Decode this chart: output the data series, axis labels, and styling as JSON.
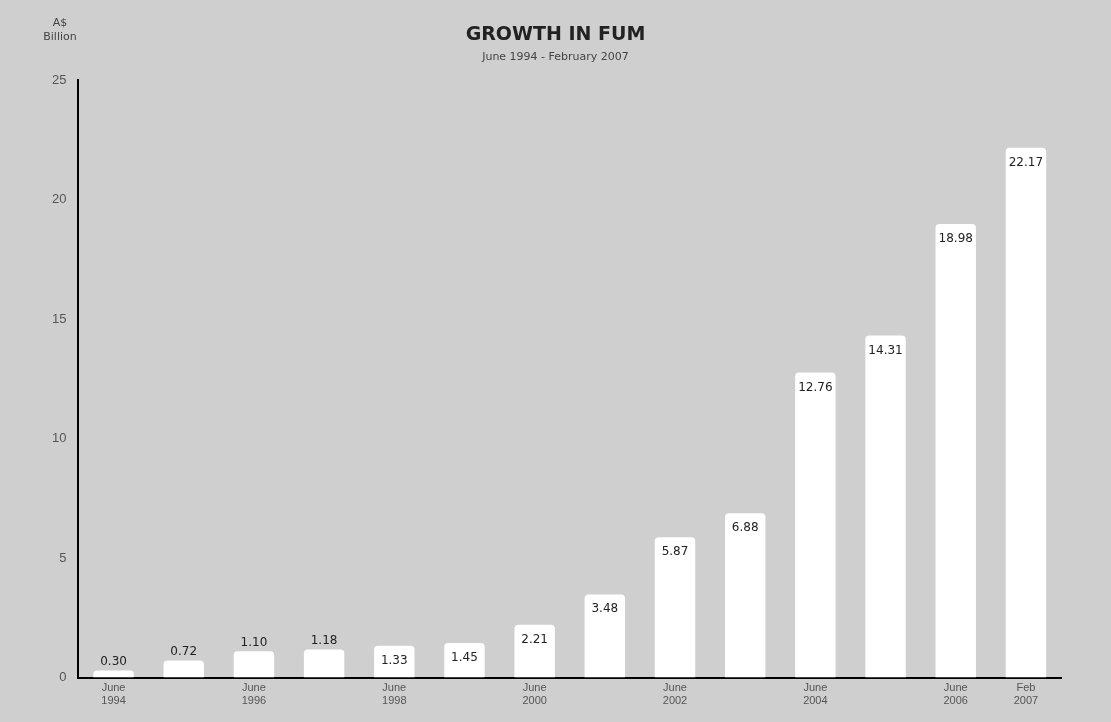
{
  "chart_data": {
    "type": "bar",
    "title": "GROWTH IN FUM",
    "subtitle": "June 1994 - February 2007",
    "ylabel": "A$ Billion",
    "categories": [
      "June 1994",
      null,
      "June 1996",
      null,
      "June 1998",
      null,
      "June 2000",
      null,
      "June 2002",
      null,
      "June 2004",
      null,
      "June 2006",
      "Feb 2007"
    ],
    "values": [
      0.3,
      0.72,
      1.1,
      1.18,
      1.33,
      1.45,
      2.21,
      3.48,
      5.87,
      6.88,
      12.76,
      14.31,
      18.98,
      22.17
    ],
    "value_labels": [
      "0.30",
      "0.72",
      "1.10",
      "1.18",
      "1.33",
      "1.45",
      "2.21",
      "3.48",
      "5.87",
      "6.88",
      "12.76",
      "14.31",
      "18.98",
      "22.17"
    ],
    "color": "#ffffff",
    "ylim": [
      0,
      25
    ],
    "yticks": [
      0,
      5,
      10,
      15,
      20,
      25
    ],
    "grid": false,
    "legend": false
  }
}
